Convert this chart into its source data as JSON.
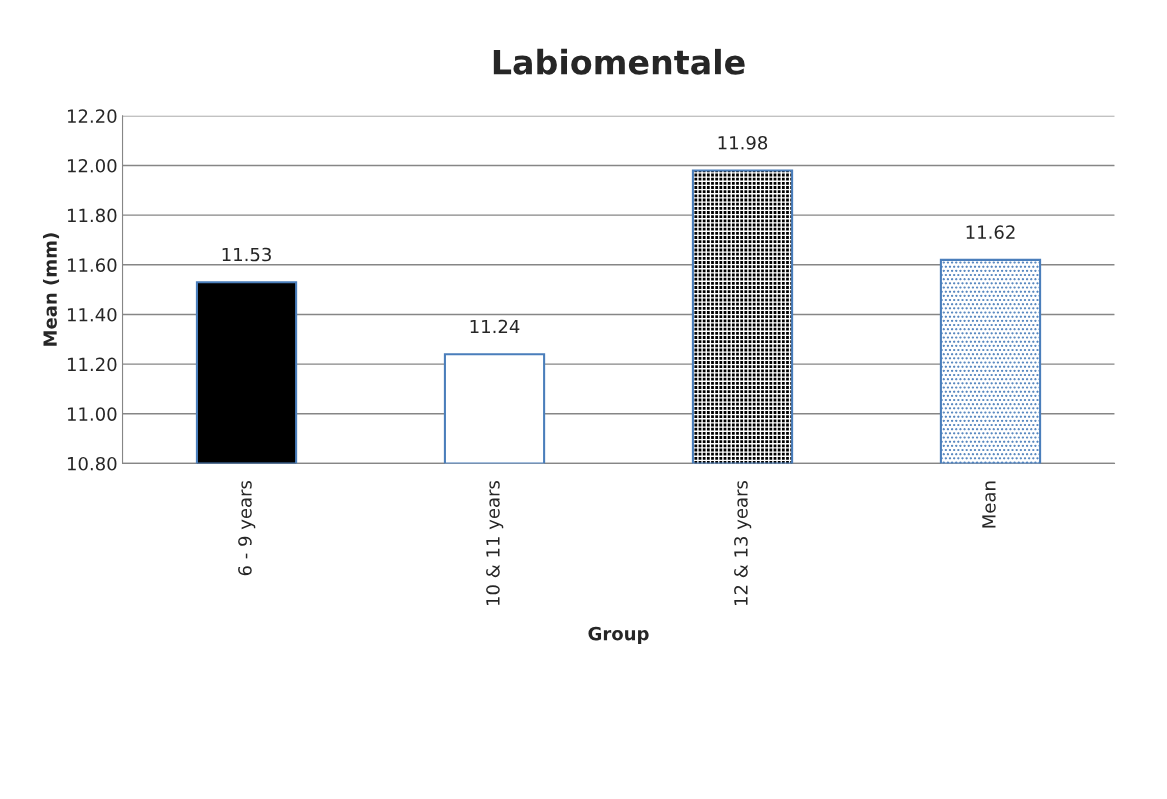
{
  "chart_data": {
    "type": "bar",
    "title": "Labiomentale",
    "xlabel": "Group",
    "ylabel": "Mean (mm)",
    "categories": [
      "6 - 9 years",
      "10 & 11 years",
      "12 & 13 years",
      "Mean"
    ],
    "values": [
      11.53,
      11.24,
      11.98,
      11.62
    ],
    "colors": [
      "#000000",
      "#ffffff",
      "#000000",
      "#ffffff"
    ],
    "ylim": [
      10.8,
      12.2
    ],
    "yticks": [
      {
        "value": 10.8,
        "label": "10.80"
      },
      {
        "value": 11.0,
        "label": "11.00"
      },
      {
        "value": 11.2,
        "label": "11.20"
      },
      {
        "value": 11.4,
        "label": "11.40"
      },
      {
        "value": 11.6,
        "label": "11.60"
      },
      {
        "value": 11.8,
        "label": "11.80"
      },
      {
        "value": 12.0,
        "label": "12.00"
      },
      {
        "value": 12.2,
        "label": "12.20"
      }
    ],
    "grid": "y",
    "data_labels": true
  }
}
